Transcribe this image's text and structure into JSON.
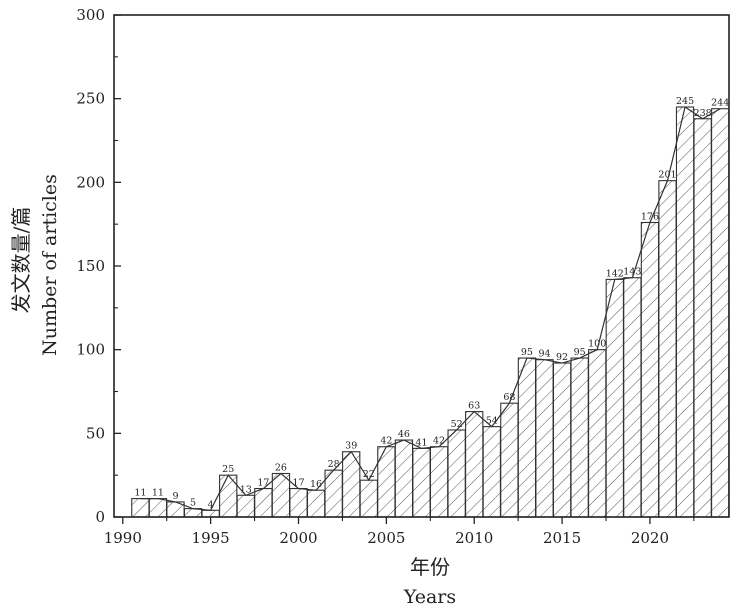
{
  "chart_data": {
    "type": "bar",
    "title": "",
    "xlabel": "年份",
    "xlabel_en": "Years",
    "ylabel": "发文数量/篇",
    "ylabel_en": "Number of articles",
    "ylim": [
      0,
      300
    ],
    "xlim": [
      1989.5,
      2024.5
    ],
    "y_ticks": [
      0,
      50,
      100,
      150,
      200,
      250,
      300
    ],
    "x_ticks": [
      1990,
      1995,
      2000,
      2005,
      2010,
      2015,
      2020
    ],
    "grid": false,
    "legend": "none",
    "bar_fill": "hatched",
    "overlay_line": true,
    "colors": {
      "stroke": "#333333",
      "text": "#222222",
      "background": "#ffffff"
    },
    "x": [
      1991,
      1992,
      1993,
      1994,
      1995,
      1996,
      1997,
      1998,
      1999,
      2000,
      2001,
      2002,
      2003,
      2004,
      2005,
      2006,
      2007,
      2008,
      2009,
      2010,
      2011,
      2012,
      2013,
      2014,
      2015,
      2016,
      2017,
      2018,
      2019,
      2020,
      2021,
      2022,
      2023,
      2024
    ],
    "values": [
      11,
      11,
      9,
      5,
      4,
      25,
      13,
      17,
      26,
      17,
      16,
      28,
      39,
      22,
      42,
      46,
      41,
      42,
      52,
      63,
      54,
      68,
      95,
      94,
      92,
      95,
      100,
      142,
      143,
      176,
      201,
      245,
      238,
      244
    ],
    "labels": [
      "11",
      "11",
      "9",
      "5",
      "4",
      "25",
      "13",
      "17",
      "26",
      "17",
      "16",
      "28",
      "39",
      "22",
      "42",
      "46",
      "41",
      "42",
      "52",
      "63",
      "54",
      "68",
      "95",
      "94",
      "92",
      "95",
      "100",
      "142",
      "143",
      "176",
      "201",
      "245",
      "238",
      "244"
    ]
  }
}
